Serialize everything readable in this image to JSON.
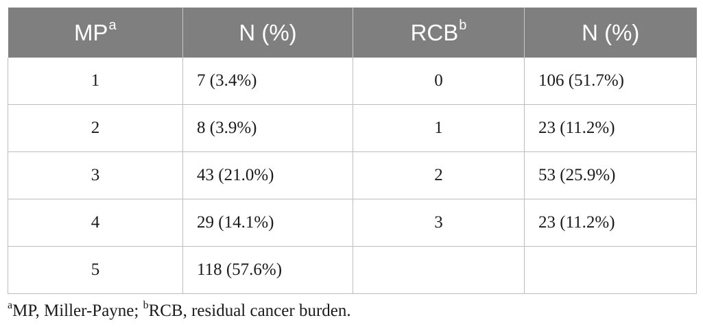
{
  "table": {
    "headers": [
      {
        "text": "MP",
        "sup": "a"
      },
      {
        "text": "N (%)",
        "sup": ""
      },
      {
        "text": "RCB",
        "sup": "b"
      },
      {
        "text": "N (%)",
        "sup": ""
      }
    ],
    "rows": [
      {
        "mp": "1",
        "mp_n": "7 (3.4%)",
        "rcb": "0",
        "rcb_n": "106 (51.7%)"
      },
      {
        "mp": "2",
        "mp_n": "8 (3.9%)",
        "rcb": "1",
        "rcb_n": "23 (11.2%)"
      },
      {
        "mp": "3",
        "mp_n": "43 (21.0%)",
        "rcb": "2",
        "rcb_n": "53 (25.9%)"
      },
      {
        "mp": "4",
        "mp_n": "29 (14.1%)",
        "rcb": "3",
        "rcb_n": "23 (11.2%)"
      },
      {
        "mp": "5",
        "mp_n": "118 (57.6%)",
        "rcb": "",
        "rcb_n": ""
      }
    ]
  },
  "footnote": {
    "a_mark": "a",
    "a_text": "MP, Miller-Payne; ",
    "b_mark": "b",
    "b_text": "RCB, residual cancer burden."
  },
  "colors": {
    "header_bg": "#7f7f7f",
    "header_text": "#ffffff",
    "grid": "#bdbdbd"
  }
}
